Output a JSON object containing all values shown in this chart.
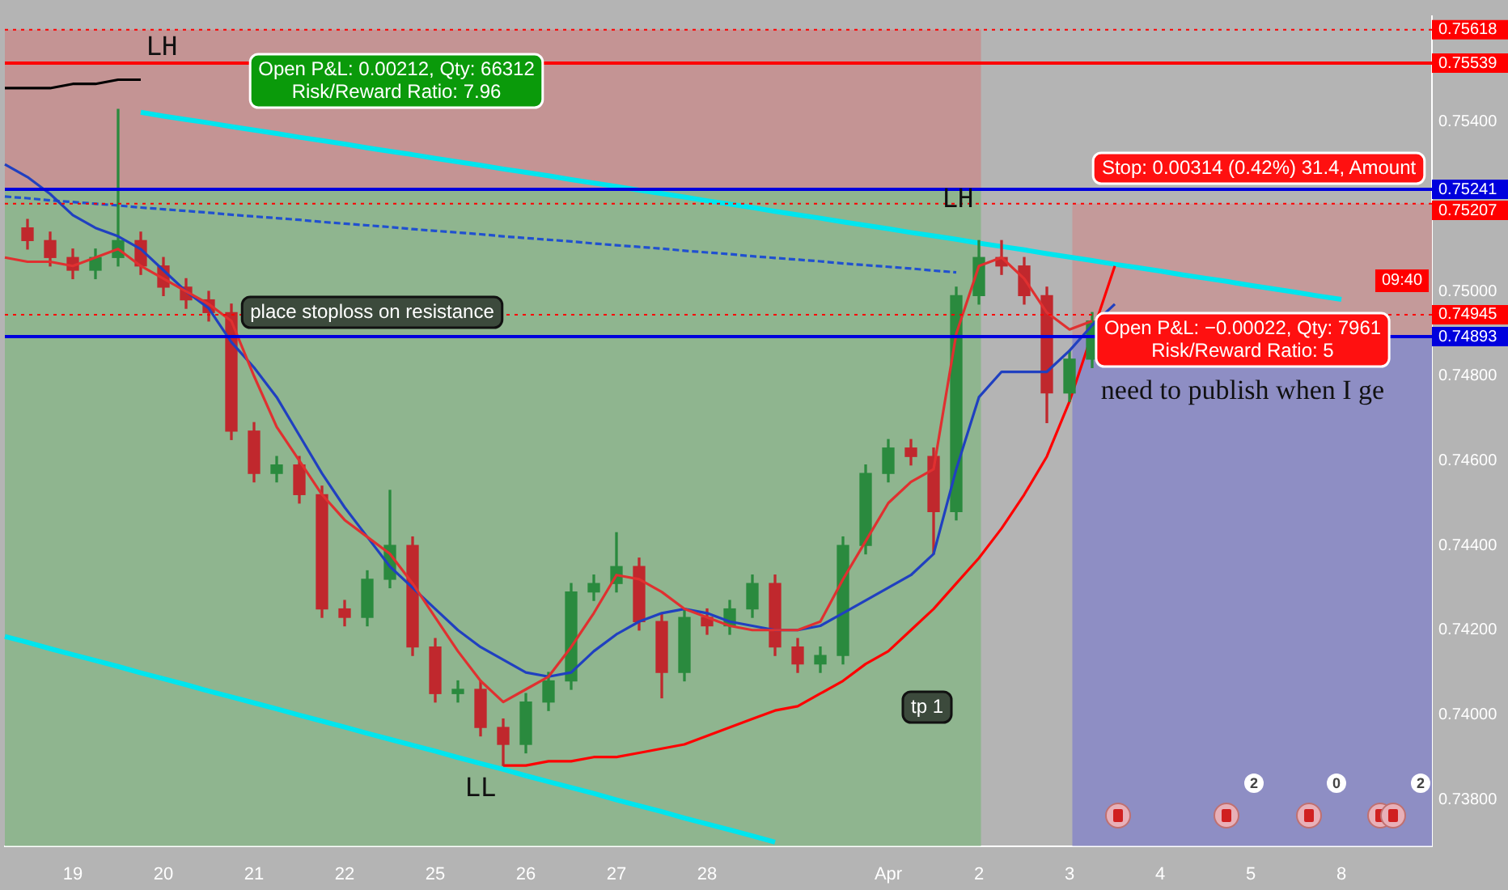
{
  "chart_data": {
    "type": "candlestick",
    "categories": [
      null,
      null,
      null,
      "19",
      null,
      null,
      null,
      "20",
      null,
      null,
      null,
      "21",
      null,
      null,
      null,
      "22",
      null,
      null,
      null,
      "25",
      null,
      null,
      null,
      "26",
      null,
      null,
      null,
      "27",
      null,
      null,
      null,
      "28",
      null,
      null,
      null,
      null,
      null,
      null,
      null,
      "Apr",
      null,
      null,
      null,
      "2",
      null,
      null,
      null,
      "3",
      null,
      null,
      null,
      "4",
      null,
      null,
      null,
      "5",
      null,
      null,
      null,
      "8",
      null,
      null,
      null,
      null
    ],
    "ohlc": [
      null,
      [
        0.7515,
        0.7517,
        0.751,
        0.7512
      ],
      [
        0.7512,
        0.7514,
        0.7506,
        0.7508
      ],
      [
        0.7508,
        0.751,
        0.7503,
        0.7505
      ],
      [
        0.7505,
        0.751,
        0.7503,
        0.7508
      ],
      [
        0.7508,
        0.7543,
        0.7506,
        0.7512
      ],
      [
        0.7512,
        0.7514,
        0.7504,
        0.7506
      ],
      [
        0.7506,
        0.7508,
        0.7499,
        0.7501
      ],
      [
        0.7501,
        0.7503,
        0.7496,
        0.7498
      ],
      [
        0.7498,
        0.75,
        0.7493,
        0.7495
      ],
      [
        0.7495,
        0.7497,
        0.7465,
        0.7467
      ],
      [
        0.7467,
        0.7469,
        0.7455,
        0.7457
      ],
      [
        0.7457,
        0.7461,
        0.7455,
        0.7459
      ],
      [
        0.7459,
        0.7461,
        0.745,
        0.7452
      ],
      [
        0.7452,
        0.7454,
        0.7423,
        0.7425
      ],
      [
        0.7425,
        0.7427,
        0.7421,
        0.7423
      ],
      [
        0.7423,
        0.7434,
        0.7421,
        0.7432
      ],
      [
        0.7432,
        0.7453,
        0.743,
        0.744
      ],
      [
        0.744,
        0.7442,
        0.7414,
        0.7416
      ],
      [
        0.7416,
        0.7418,
        0.7403,
        0.7405
      ],
      [
        0.7405,
        0.7408,
        0.7403,
        0.7406
      ],
      [
        0.7406,
        0.7408,
        0.7395,
        0.7397
      ],
      [
        0.7397,
        0.7399,
        0.7388,
        0.7393
      ],
      [
        0.7393,
        0.7405,
        0.7391,
        0.7403
      ],
      [
        0.7403,
        0.741,
        0.7401,
        0.7408
      ],
      [
        0.7408,
        0.7431,
        0.7406,
        0.7429
      ],
      [
        0.7429,
        0.7433,
        0.7427,
        0.7431
      ],
      [
        0.7431,
        0.7443,
        0.7429,
        0.7435
      ],
      [
        0.7435,
        0.7437,
        0.742,
        0.7422
      ],
      [
        0.7422,
        0.7424,
        0.7404,
        0.741
      ],
      [
        0.741,
        0.7425,
        0.7408,
        0.7423
      ],
      [
        0.7423,
        0.7425,
        0.7419,
        0.7421
      ],
      [
        0.7421,
        0.7427,
        0.7419,
        0.7425
      ],
      [
        0.7425,
        0.7433,
        0.7423,
        0.7431
      ],
      [
        0.7431,
        0.7433,
        0.7414,
        0.7416
      ],
      [
        0.7416,
        0.7418,
        0.741,
        0.7412
      ],
      [
        0.7412,
        0.7416,
        0.741,
        0.7414
      ],
      [
        0.7414,
        0.7442,
        0.7412,
        0.744
      ],
      [
        0.744,
        0.7459,
        0.7438,
        0.7457
      ],
      [
        0.7457,
        0.7465,
        0.7455,
        0.7463
      ],
      [
        0.7463,
        0.7465,
        0.7459,
        0.7461
      ],
      [
        0.7461,
        0.7463,
        0.7438,
        0.7448
      ],
      [
        0.7448,
        0.7501,
        0.7446,
        0.7499
      ],
      [
        0.7499,
        0.7512,
        0.7497,
        0.7508
      ],
      [
        0.7508,
        0.7512,
        0.7504,
        0.7506
      ],
      [
        0.7506,
        0.7508,
        0.7497,
        0.7499
      ],
      [
        0.7499,
        0.7501,
        0.7469,
        0.7476
      ],
      [
        0.7476,
        0.7486,
        0.7474,
        0.7484
      ],
      [
        0.7484,
        0.7495,
        0.7482,
        0.7493
      ],
      null,
      null,
      null,
      null,
      null,
      null,
      null,
      null,
      null,
      null,
      null,
      null,
      null,
      null,
      null
    ],
    "colors": [
      null,
      "#c0282d",
      "#c0282d",
      "#c0282d",
      "#2a8a3e",
      "#2a8a3e",
      "#c0282d",
      "#c0282d",
      "#c0282d",
      "#c0282d",
      "#c0282d",
      "#c0282d",
      "#2a8a3e",
      "#c0282d",
      "#c0282d",
      "#c0282d",
      "#2a8a3e",
      "#2a8a3e",
      "#c0282d",
      "#c0282d",
      "#2a8a3e",
      "#c0282d",
      "#c0282d",
      "#2a8a3e",
      "#2a8a3e",
      "#2a8a3e",
      "#2a8a3e",
      "#2a8a3e",
      "#c0282d",
      "#c0282d",
      "#2a8a3e",
      "#c0282d",
      "#2a8a3e",
      "#2a8a3e",
      "#c0282d",
      "#c0282d",
      "#2a8a3e",
      "#2a8a3e",
      "#2a8a3e",
      "#2a8a3e",
      "#c0282d",
      "#c0282d",
      "#2a8a3e",
      "#2a8a3e",
      "#c0282d",
      "#c0282d",
      "#c0282d",
      "#2a8a3e",
      "#2a8a3e",
      null,
      null,
      null,
      null,
      null,
      null,
      null,
      null,
      null,
      null,
      null,
      null,
      null,
      null,
      null
    ],
    "series": [
      {
        "type": "line",
        "color": "#e03030",
        "values": [
          0.7508,
          0.7507,
          0.7507,
          0.7506,
          0.7508,
          0.751,
          0.7506,
          0.7503,
          0.75,
          0.7497,
          0.7493,
          0.748,
          0.7468,
          0.746,
          0.7452,
          0.7446,
          0.7442,
          0.7438,
          0.7431,
          0.7423,
          0.7415,
          0.7408,
          0.7403,
          0.7406,
          0.7409,
          0.7416,
          0.7424,
          0.7433,
          0.7432,
          0.7429,
          0.7425,
          0.7423,
          0.7421,
          0.742,
          0.742,
          0.742,
          0.7422,
          0.7432,
          0.7441,
          0.745,
          0.7455,
          0.7458,
          0.749,
          0.7506,
          0.7508,
          0.7503,
          0.7495,
          0.7491,
          0.7493,
          null,
          null,
          null,
          null,
          null,
          null,
          null,
          null,
          null,
          null,
          null,
          null,
          null,
          null,
          null
        ]
      },
      {
        "type": "line",
        "color": "#2040c0",
        "values": [
          0.753,
          0.7527,
          0.7523,
          0.7518,
          0.7515,
          0.7513,
          0.751,
          0.7505,
          0.75,
          0.7496,
          0.7488,
          0.7482,
          0.7475,
          0.7466,
          0.7457,
          0.7449,
          0.7442,
          0.7435,
          0.743,
          0.7425,
          0.742,
          0.7416,
          0.7413,
          0.741,
          0.7409,
          0.741,
          0.7415,
          0.7419,
          0.7422,
          0.7424,
          0.7425,
          0.7424,
          0.7422,
          0.7421,
          0.742,
          0.742,
          0.7421,
          0.7424,
          0.7427,
          0.743,
          0.7433,
          0.7438,
          0.7458,
          0.7475,
          0.7481,
          0.7481,
          0.7481,
          0.7486,
          0.7492,
          0.7497,
          null,
          null,
          null,
          null,
          null,
          null,
          null,
          null,
          null,
          null,
          null,
          null,
          null,
          null
        ]
      },
      {
        "type": "line",
        "color": "#ff0000",
        "values": [
          null,
          null,
          null,
          null,
          null,
          null,
          null,
          null,
          null,
          null,
          null,
          null,
          null,
          null,
          null,
          null,
          null,
          null,
          null,
          null,
          null,
          null,
          0.7388,
          0.7388,
          0.7389,
          0.7389,
          0.739,
          0.739,
          0.7391,
          0.7392,
          0.7393,
          0.7395,
          0.7397,
          0.7399,
          0.7401,
          0.7402,
          0.7405,
          0.7408,
          0.7412,
          0.7415,
          0.742,
          0.7425,
          0.7431,
          0.7437,
          0.7444,
          0.7452,
          0.7461,
          0.7474,
          0.749,
          0.7506,
          null,
          null,
          null,
          null,
          null,
          null,
          null,
          null,
          null,
          null,
          null,
          null,
          null,
          null
        ]
      },
      {
        "type": "line",
        "color": "#00e5ee",
        "values": [
          null,
          null,
          null,
          null,
          null,
          null,
          0.75423,
          0.75414,
          0.75406,
          0.75398,
          0.75389,
          0.75381,
          0.75373,
          0.75364,
          0.75356,
          0.75348,
          0.75339,
          0.75331,
          0.75323,
          0.75314,
          0.75306,
          0.75298,
          0.75289,
          0.75281,
          0.75273,
          0.75264,
          0.75256,
          0.75248,
          0.75239,
          0.75231,
          0.75223,
          0.75214,
          0.75206,
          0.75198,
          0.75189,
          0.75181,
          0.75173,
          0.75164,
          0.75156,
          0.75148,
          0.75139,
          0.75131,
          0.75123,
          0.75114,
          0.75106,
          0.75098,
          0.75089,
          0.75081,
          0.75073,
          0.75064,
          0.75056,
          0.75048,
          0.75039,
          0.75031,
          0.75023,
          0.75014,
          0.75006,
          0.74998,
          0.74989,
          0.74981,
          null,
          null,
          null,
          null
        ]
      },
      {
        "type": "line",
        "color": "#00e5ee",
        "values": [
          0.74185,
          0.74171,
          0.74156,
          0.74142,
          0.74128,
          0.74114,
          0.74099,
          0.74085,
          0.74071,
          0.74056,
          0.74042,
          0.74028,
          0.74014,
          0.73999,
          0.73985,
          0.73971,
          0.73956,
          0.73942,
          0.73928,
          0.73914,
          0.73899,
          0.73885,
          0.73871,
          0.73856,
          0.73842,
          0.73828,
          0.73814,
          0.73799,
          0.73785,
          0.73771,
          0.73756,
          0.73742,
          0.73728,
          0.73714,
          0.73699,
          null,
          null,
          null,
          null,
          null,
          null,
          null,
          null,
          null,
          null,
          null,
          null,
          null,
          null,
          null,
          null,
          null,
          null,
          null,
          null,
          null,
          null,
          null,
          null,
          null,
          null,
          null,
          null,
          null
        ]
      },
      {
        "type": "line",
        "color": "#2050d0",
        "line_style": "dashed",
        "values": [
          0.75224,
          0.7522,
          0.75215,
          0.75211,
          0.75207,
          0.75203,
          0.75198,
          0.75194,
          0.7519,
          0.75186,
          0.75181,
          0.75177,
          0.75173,
          0.75169,
          0.75164,
          0.7516,
          0.75156,
          0.75152,
          0.75147,
          0.75143,
          0.75139,
          0.75135,
          0.7513,
          0.75126,
          0.75122,
          0.75118,
          0.75113,
          0.75109,
          0.75105,
          0.75101,
          0.75096,
          0.75092,
          0.75088,
          0.75083,
          0.75079,
          0.75075,
          0.75071,
          0.75066,
          0.75062,
          0.75058,
          0.75054,
          0.75049,
          0.75045,
          null,
          null,
          null,
          null,
          null,
          null,
          null,
          null,
          null,
          null,
          null,
          null,
          null,
          null,
          null,
          null,
          null,
          null,
          null,
          null,
          null
        ]
      },
      {
        "type": "line",
        "color": "#000000",
        "values": [
          0.7548,
          0.7548,
          0.7548,
          0.7549,
          0.7549,
          0.755,
          0.755,
          null,
          null,
          null,
          null,
          null,
          null,
          null,
          null,
          null,
          null,
          null,
          null,
          null,
          null,
          null,
          null,
          null,
          null,
          null,
          null,
          null,
          null,
          null,
          null,
          null,
          null,
          null,
          null,
          null,
          null,
          null,
          null,
          null,
          null,
          null,
          null,
          null,
          null,
          null,
          null,
          null,
          null,
          null,
          null,
          null,
          null,
          null,
          null,
          null,
          null,
          null,
          null,
          null,
          null,
          null,
          null,
          null
        ]
      }
    ],
    "ylim": [
      0.7369,
      0.7565
    ],
    "yticks": [
      {
        "value": 0.738,
        "label": "0.73800"
      },
      {
        "value": 0.74,
        "label": "0.74000"
      },
      {
        "value": 0.742,
        "label": "0.74200"
      },
      {
        "value": 0.744,
        "label": "0.74400"
      },
      {
        "value": 0.746,
        "label": "0.74600"
      },
      {
        "value": 0.748,
        "label": "0.74800"
      },
      {
        "value": 0.75,
        "label": "0.75000"
      },
      {
        "value": 0.754,
        "label": "0.75400"
      }
    ],
    "bands": [
      {
        "axis": "y",
        "from": 0.75244,
        "to": 0.75618,
        "color": "#c49494",
        "label": null
      },
      {
        "axis": "y",
        "from": 0.7369,
        "to": 0.75244,
        "color": "#8fb58f",
        "label": null
      },
      {
        "axis": "y",
        "from": 0.74893,
        "to": 0.75207,
        "color": "#c49a9a",
        "label": null
      },
      {
        "axis": "y",
        "from": 0.7369,
        "to": 0.74893,
        "color": "#8e8ec4",
        "label": null
      }
    ],
    "ref_lines": [
      {
        "axis": "y",
        "value": 0.75618,
        "label": "0.75618",
        "color": "#ff0000",
        "line_style": "dotted"
      },
      {
        "axis": "y",
        "value": 0.75539,
        "label": "0.75539",
        "color": "#ff0000",
        "line_style": "solid"
      },
      {
        "axis": "y",
        "value": 0.75241,
        "label": "0.75241",
        "color": "#0000dd",
        "line_style": "solid"
      },
      {
        "axis": "y",
        "value": 0.75207,
        "label": "0.75207",
        "color": "#ff0000",
        "line_style": "dotted"
      },
      {
        "axis": "y",
        "value": 0.74945,
        "label": "0.74945\n09:40",
        "color": "#ff0000",
        "line_style": "dotted"
      },
      {
        "axis": "y",
        "value": 0.74893,
        "label": "0.74893",
        "color": "#0000dd",
        "line_style": "solid"
      }
    ],
    "annotations": [
      "LH",
      "LH",
      "LL",
      "place stoploss on resistance",
      "tp 1",
      "Open P&L: 0.00212, Qty: 66312\nRisk/Reward Ratio: 7.96",
      "Stop: 0.00314 (0.42%) 31.4, Amount",
      "Open P&L: −0.00022, Qty: 7961\nRisk/Reward Ratio: 5",
      "need to publish when I ge",
      "2",
      "0",
      "2"
    ]
  }
}
